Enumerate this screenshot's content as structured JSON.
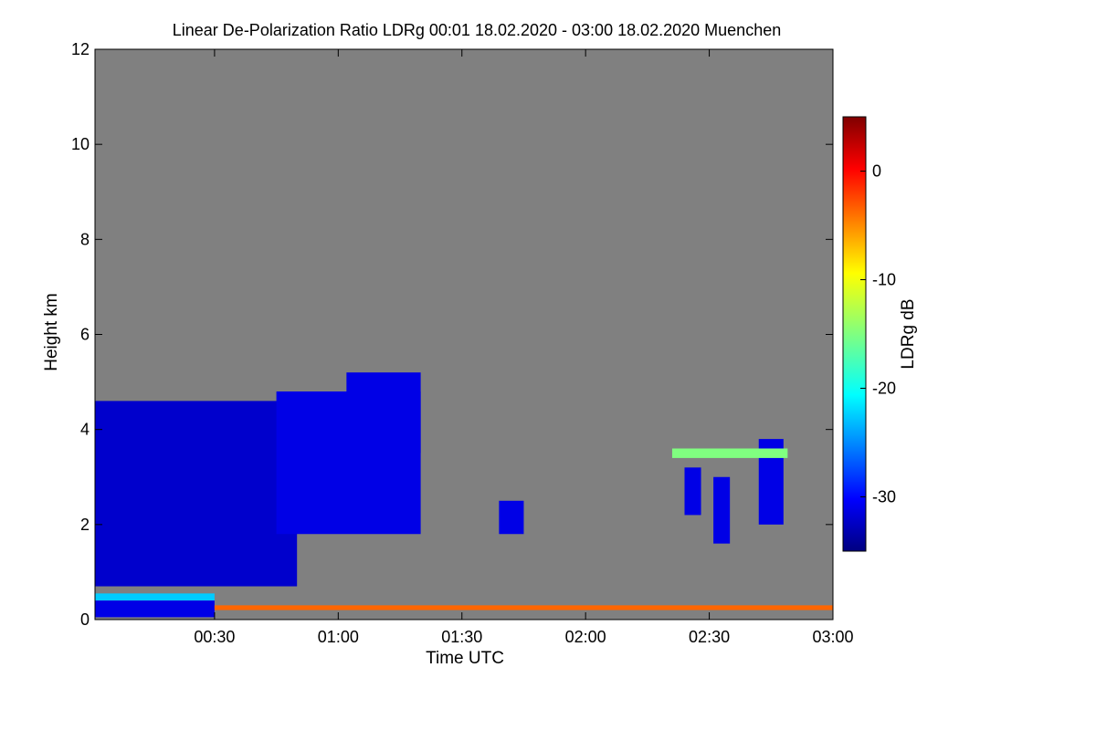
{
  "chart_data": {
    "type": "heatmap",
    "title": "Linear De-Polarization Ratio LDRg   00:01 18.02.2020 - 03:00 18.02.2020 Muenchen",
    "xlabel": "Time UTC",
    "ylabel": "Height km",
    "x_range_minutes": [
      1,
      180
    ],
    "x_ticks": [
      {
        "minutes": 30,
        "label": "00:30"
      },
      {
        "minutes": 60,
        "label": "01:00"
      },
      {
        "minutes": 90,
        "label": "01:30"
      },
      {
        "minutes": 120,
        "label": "02:00"
      },
      {
        "minutes": 150,
        "label": "02:30"
      },
      {
        "minutes": 180,
        "label": "03:00"
      }
    ],
    "ylim": [
      0,
      12
    ],
    "y_ticks": [
      {
        "value": 0,
        "label": "0"
      },
      {
        "value": 2,
        "label": "2"
      },
      {
        "value": 4,
        "label": "4"
      },
      {
        "value": 6,
        "label": "6"
      },
      {
        "value": 8,
        "label": "8"
      },
      {
        "value": 10,
        "label": "10"
      },
      {
        "value": 12,
        "label": "12"
      }
    ],
    "colorbar": {
      "label": "LDRg dB",
      "range": [
        -35,
        5
      ],
      "ticks": [
        {
          "value": 0,
          "label": "0"
        },
        {
          "value": -10,
          "label": "-10"
        },
        {
          "value": -20,
          "label": "-20"
        },
        {
          "value": -30,
          "label": "-30"
        }
      ],
      "colors": [
        "#000080",
        "#0000ff",
        "#0080ff",
        "#00ffff",
        "#80ff80",
        "#ffff00",
        "#ff8000",
        "#ff0000",
        "#800000"
      ]
    },
    "background_color": "#808080",
    "regions": [
      {
        "t0": 1,
        "t1": 50,
        "h0": 0.7,
        "h1": 4.6,
        "ldr": -32
      },
      {
        "t0": 1,
        "t1": 30,
        "h0": 0.4,
        "h1": 0.55,
        "ldr": -22
      },
      {
        "t0": 1,
        "t1": 30,
        "h0": 0.05,
        "h1": 0.4,
        "ldr": -31
      },
      {
        "t0": 45,
        "t1": 80,
        "h0": 1.8,
        "h1": 4.8,
        "ldr": -31
      },
      {
        "t0": 62,
        "t1": 80,
        "h0": 3.5,
        "h1": 5.2,
        "ldr": -31
      },
      {
        "t0": 30,
        "t1": 180,
        "h0": 0.2,
        "h1": 0.3,
        "ldr": -4
      },
      {
        "t0": 99,
        "t1": 105,
        "h0": 1.8,
        "h1": 2.5,
        "ldr": -31
      },
      {
        "t0": 144,
        "t1": 148,
        "h0": 2.2,
        "h1": 3.2,
        "ldr": -31
      },
      {
        "t0": 151,
        "t1": 155,
        "h0": 1.6,
        "h1": 3.0,
        "ldr": -31
      },
      {
        "t0": 162,
        "t1": 168,
        "h0": 2.0,
        "h1": 3.8,
        "ldr": -31
      },
      {
        "t0": 141,
        "t1": 169,
        "h0": 3.4,
        "h1": 3.6,
        "ldr": -15
      }
    ]
  }
}
